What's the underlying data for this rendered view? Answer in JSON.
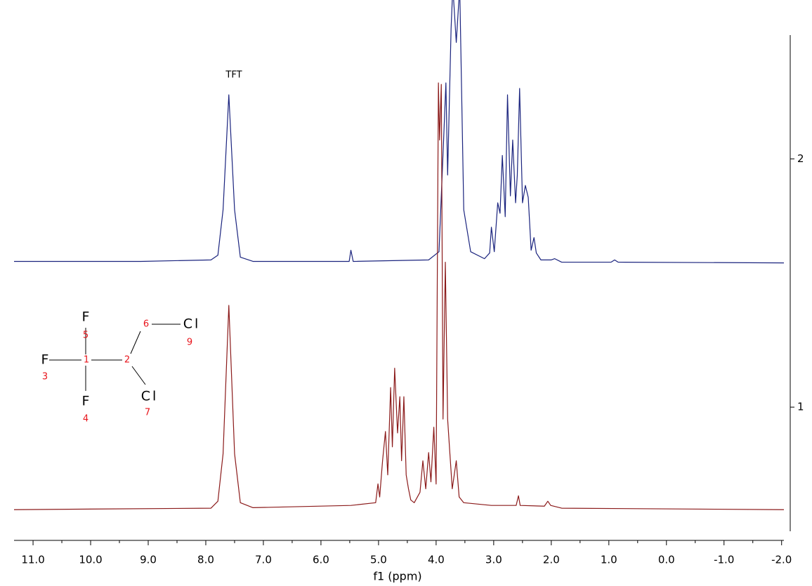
{
  "chart_data": {
    "type": "line",
    "xlabel": "f1 (ppm)",
    "annotations": [
      {
        "text": "TFT"
      }
    ],
    "xlim": [
      11.33,
      -2.04
    ],
    "ylim": [
      0.5,
      2.64
    ],
    "xticks": [
      {
        "value": 11,
        "label": "11.0"
      },
      {
        "value": 10,
        "label": "10.0"
      },
      {
        "value": 9,
        "label": "9.0"
      },
      {
        "value": 8,
        "label": "8.0"
      },
      {
        "value": 7,
        "label": "7.0"
      },
      {
        "value": 6,
        "label": "6.0"
      },
      {
        "value": 5,
        "label": "5.0"
      },
      {
        "value": 4,
        "label": "4.0"
      },
      {
        "value": 3,
        "label": "3.0"
      },
      {
        "value": 2,
        "label": "2.0"
      },
      {
        "value": 1,
        "label": "1.0"
      },
      {
        "value": 0,
        "label": "0.0"
      },
      {
        "value": -1,
        "label": "-1.0"
      },
      {
        "value": -2,
        "label": "-2.0"
      }
    ],
    "xminorticks": [
      10.5,
      9.5,
      8.5,
      7.5,
      6.5,
      5.5,
      4.5,
      3.5,
      2.5,
      1.5,
      0.5,
      -0.5,
      -1.5
    ],
    "yticks": [
      1,
      2
    ],
    "series": [
      {
        "color": "#1a237e",
        "x": [
          11.33,
          9.13,
          7.91,
          7.79,
          7.7,
          7.6,
          7.5,
          7.4,
          7.18,
          5.51,
          5.48,
          5.44,
          4.13,
          3.95,
          3.87,
          3.83,
          3.8,
          3.74,
          3.71,
          3.65,
          3.59,
          3.52,
          3.4,
          3.16,
          3.07,
          3.04,
          2.99,
          2.93,
          2.89,
          2.85,
          2.8,
          2.76,
          2.71,
          2.67,
          2.62,
          2.59,
          2.55,
          2.5,
          2.45,
          2.4,
          2.35,
          2.3,
          2.26,
          2.18,
          2.0,
          1.94,
          1.82,
          0.96,
          0.9,
          0.84,
          -2.04
        ],
        "values": [
          1.587,
          1.587,
          1.593,
          1.612,
          1.795,
          2.258,
          1.795,
          1.604,
          1.587,
          1.587,
          1.632,
          1.587,
          1.593,
          1.626,
          2.076,
          2.306,
          1.935,
          2.525,
          2.694,
          2.469,
          2.694,
          1.795,
          1.626,
          1.598,
          1.621,
          1.725,
          1.626,
          1.823,
          1.781,
          2.014,
          1.767,
          2.258,
          1.851,
          2.076,
          1.823,
          1.935,
          2.284,
          1.823,
          1.893,
          1.845,
          1.632,
          1.683,
          1.621,
          1.593,
          1.593,
          1.598,
          1.584,
          1.584,
          1.593,
          1.584,
          1.581
        ]
      },
      {
        "color": "#8b1a1a",
        "x": [
          11.33,
          7.91,
          7.79,
          7.7,
          7.6,
          7.5,
          7.4,
          7.18,
          5.48,
          5.05,
          5.01,
          4.98,
          4.93,
          4.88,
          4.84,
          4.79,
          4.76,
          4.72,
          4.67,
          4.63,
          4.6,
          4.56,
          4.52,
          4.48,
          4.44,
          4.38,
          4.28,
          4.23,
          4.18,
          4.13,
          4.09,
          4.04,
          4.0,
          3.96,
          3.94,
          3.91,
          3.88,
          3.84,
          3.8,
          3.77,
          3.72,
          3.65,
          3.6,
          3.52,
          3.04,
          2.61,
          2.57,
          2.54,
          2.12,
          2.06,
          2.01,
          1.82,
          -2.04
        ],
        "values": [
          0.587,
          0.593,
          0.621,
          0.812,
          1.41,
          0.812,
          0.615,
          0.595,
          0.604,
          0.615,
          0.691,
          0.638,
          0.784,
          0.902,
          0.727,
          1.079,
          0.84,
          1.157,
          0.896,
          1.042,
          0.784,
          1.042,
          0.727,
          0.671,
          0.626,
          0.615,
          0.657,
          0.784,
          0.671,
          0.817,
          0.699,
          0.919,
          0.69,
          2.306,
          2.076,
          2.3,
          0.952,
          1.584,
          0.952,
          0.845,
          0.671,
          0.784,
          0.638,
          0.615,
          0.604,
          0.604,
          0.643,
          0.604,
          0.601,
          0.621,
          0.604,
          0.593,
          0.587
        ]
      }
    ]
  },
  "structure": {
    "atoms": [
      "F",
      "F",
      "F",
      "Cl",
      "Cl"
    ],
    "numbers": [
      "1",
      "2",
      "3",
      "4",
      "5",
      "6",
      "7",
      "9"
    ]
  }
}
